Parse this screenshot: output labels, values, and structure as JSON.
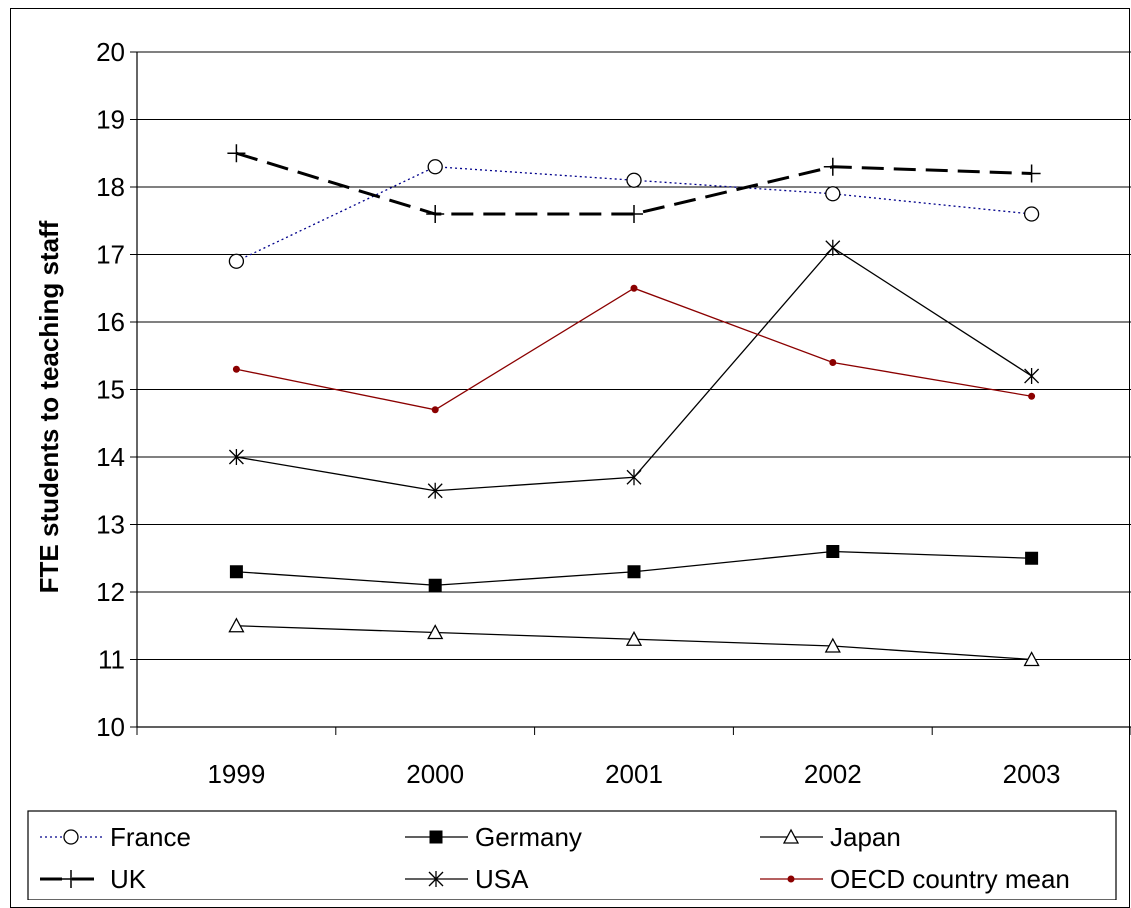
{
  "chart_data": {
    "type": "line",
    "title": "",
    "xlabel": "",
    "ylabel": "FTE students to teaching staff",
    "categories": [
      "1999",
      "2000",
      "2001",
      "2002",
      "2003"
    ],
    "ylim": [
      10,
      20
    ],
    "yticks": [
      10,
      11,
      12,
      13,
      14,
      15,
      16,
      17,
      18,
      19,
      20
    ],
    "grid": "horizontal",
    "legend_position": "bottom",
    "series": [
      {
        "name": "France",
        "values": [
          16.9,
          18.3,
          18.1,
          17.9,
          17.6
        ],
        "color": "#00008B",
        "line": "dotted",
        "marker": "circle-open"
      },
      {
        "name": "Germany",
        "values": [
          12.3,
          12.1,
          12.3,
          12.6,
          12.5
        ],
        "color": "#000000",
        "line": "solid",
        "marker": "square-filled"
      },
      {
        "name": "Japan",
        "values": [
          11.5,
          11.4,
          11.3,
          11.2,
          11.0
        ],
        "color": "#000000",
        "line": "solid",
        "marker": "triangle-open"
      },
      {
        "name": "UK",
        "values": [
          18.5,
          17.6,
          17.6,
          18.3,
          18.2
        ],
        "color": "#000000",
        "line": "dashed",
        "marker": "plus"
      },
      {
        "name": "USA",
        "values": [
          14.0,
          13.5,
          13.7,
          17.1,
          15.2
        ],
        "color": "#000000",
        "line": "solid",
        "marker": "asterisk"
      },
      {
        "name": "OECD country mean",
        "values": [
          15.3,
          14.7,
          16.5,
          15.4,
          14.9
        ],
        "color": "#8B0000",
        "line": "solid",
        "marker": "dot"
      }
    ]
  }
}
